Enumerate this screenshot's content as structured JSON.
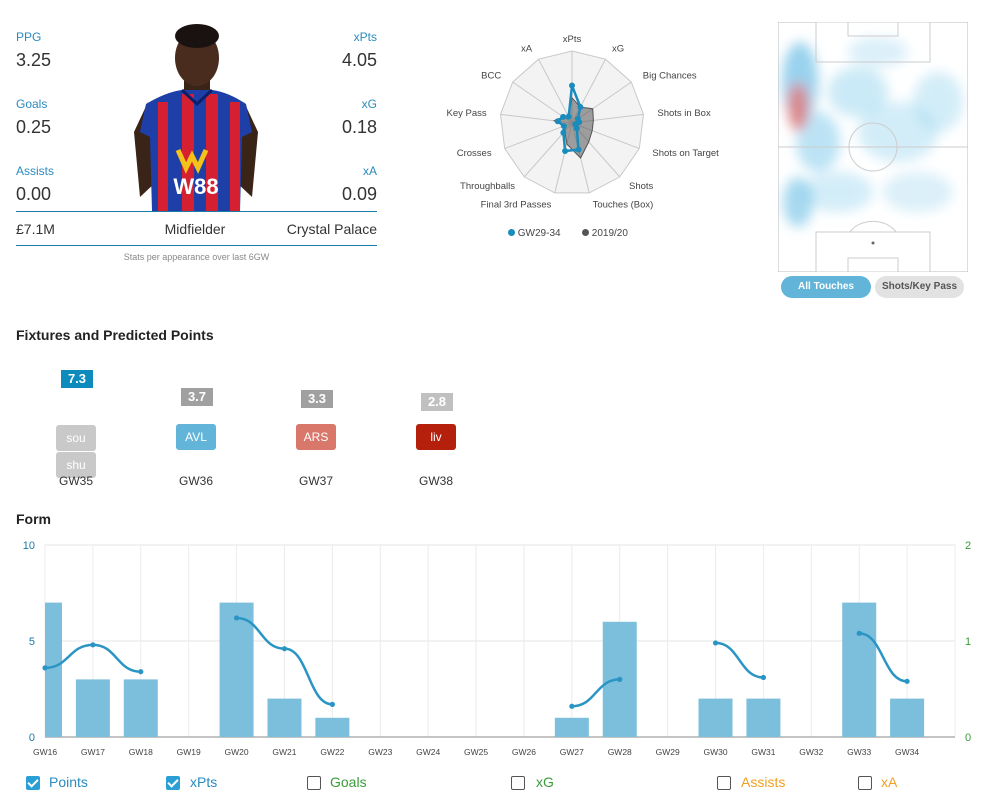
{
  "player": {
    "ppg_label": "PPG",
    "ppg": "3.25",
    "xpts_label": "xPts",
    "xpts": "4.05",
    "goals_label": "Goals",
    "goals": "0.25",
    "xg_label": "xG",
    "xg": "0.18",
    "assists_label": "Assists",
    "assists": "0.00",
    "xa_label": "xA",
    "xa": "0.09",
    "price": "£7.1M",
    "position": "Midfielder",
    "team": "Crystal Palace",
    "shirt_sponsor": "W88",
    "note": "Stats per appearance over last 6GW"
  },
  "radar": {
    "axes": [
      "xPts",
      "xG",
      "Big Chances",
      "Shots in Box",
      "Shots on Target",
      "Shots",
      "Touches (Box)",
      "Final 3rd Passes",
      "Throughballs",
      "Crosses",
      "Key Pass",
      "BCC",
      "xA"
    ],
    "series": [
      {
        "name": "GW29-34",
        "color": "#1a8bbd",
        "values": [
          0.52,
          0.25,
          0.1,
          0.1,
          0.05,
          0.1,
          0.38,
          0.4,
          0.18,
          0.12,
          0.2,
          0.15,
          0.1
        ]
      },
      {
        "name": "2019/20",
        "color": "#555555",
        "values": [
          0.35,
          0.25,
          0.35,
          0.3,
          0.3,
          0.35,
          0.5,
          0.3,
          0.15,
          0.1,
          0.25,
          0.15,
          0.1
        ]
      }
    ]
  },
  "heatmap": {
    "all_touches_label": "All Touches",
    "shots_key_pass_label": "Shots/Key Pass"
  },
  "fixtures": {
    "title": "Fixtures and Predicted Points",
    "items": [
      {
        "gw": "GW35",
        "pred": "7.3",
        "pred_color": "#0d8bbd",
        "opponents": [
          {
            "name": "sou",
            "color": "#c9c9c9"
          },
          {
            "name": "shu",
            "color": "#c9c9c9"
          }
        ]
      },
      {
        "gw": "GW36",
        "pred": "3.7",
        "pred_color": "#a0a0a0",
        "opponents": [
          {
            "name": "AVL",
            "color": "#62b5d8"
          }
        ]
      },
      {
        "gw": "GW37",
        "pred": "3.3",
        "pred_color": "#a0a0a0",
        "opponents": [
          {
            "name": "ARS",
            "color": "#d9776a"
          }
        ]
      },
      {
        "gw": "GW38",
        "pred": "2.8",
        "pred_color": "#c0c0c0",
        "opponents": [
          {
            "name": "liv",
            "color": "#b5200d"
          }
        ]
      }
    ]
  },
  "form": {
    "title": "Form",
    "chart_data": {
      "type": "bar",
      "categories": [
        "GW16",
        "GW17",
        "GW18",
        "GW19",
        "GW20",
        "GW21",
        "GW22",
        "GW23",
        "GW24",
        "GW25",
        "GW26",
        "GW27",
        "GW28",
        "GW29",
        "GW30",
        "GW31",
        "GW32",
        "GW33",
        "GW34"
      ],
      "series": [
        {
          "name": "Points",
          "type": "bar",
          "color": "#7bbfdc",
          "values": [
            7,
            3,
            3,
            null,
            7,
            2,
            1,
            null,
            null,
            null,
            null,
            1,
            6,
            null,
            2,
            2,
            null,
            7,
            2
          ]
        },
        {
          "name": "xPts",
          "type": "line",
          "color": "#2a95c4",
          "values": [
            3.6,
            4.8,
            3.4,
            null,
            6.2,
            4.6,
            1.7,
            null,
            null,
            null,
            null,
            1.6,
            3.0,
            null,
            4.9,
            3.1,
            null,
            5.4,
            2.9
          ]
        }
      ],
      "ylim": [
        0,
        10
      ],
      "yticks": [
        0,
        5,
        10
      ],
      "y2lim": [
        0,
        2
      ],
      "y2ticks": [
        0,
        1,
        2
      ]
    },
    "toggles": [
      {
        "label": "Points",
        "checked": true,
        "color": "#2a8bbf"
      },
      {
        "label": "xPts",
        "checked": true,
        "color": "#2a8bbf"
      },
      {
        "label": "Goals",
        "checked": false,
        "color": "#3a9b3a"
      },
      {
        "label": "xG",
        "checked": false,
        "color": "#3a9b3a"
      },
      {
        "label": "Assists",
        "checked": false,
        "color": "#f0a020"
      },
      {
        "label": "xA",
        "checked": false,
        "color": "#f0a020"
      }
    ]
  }
}
